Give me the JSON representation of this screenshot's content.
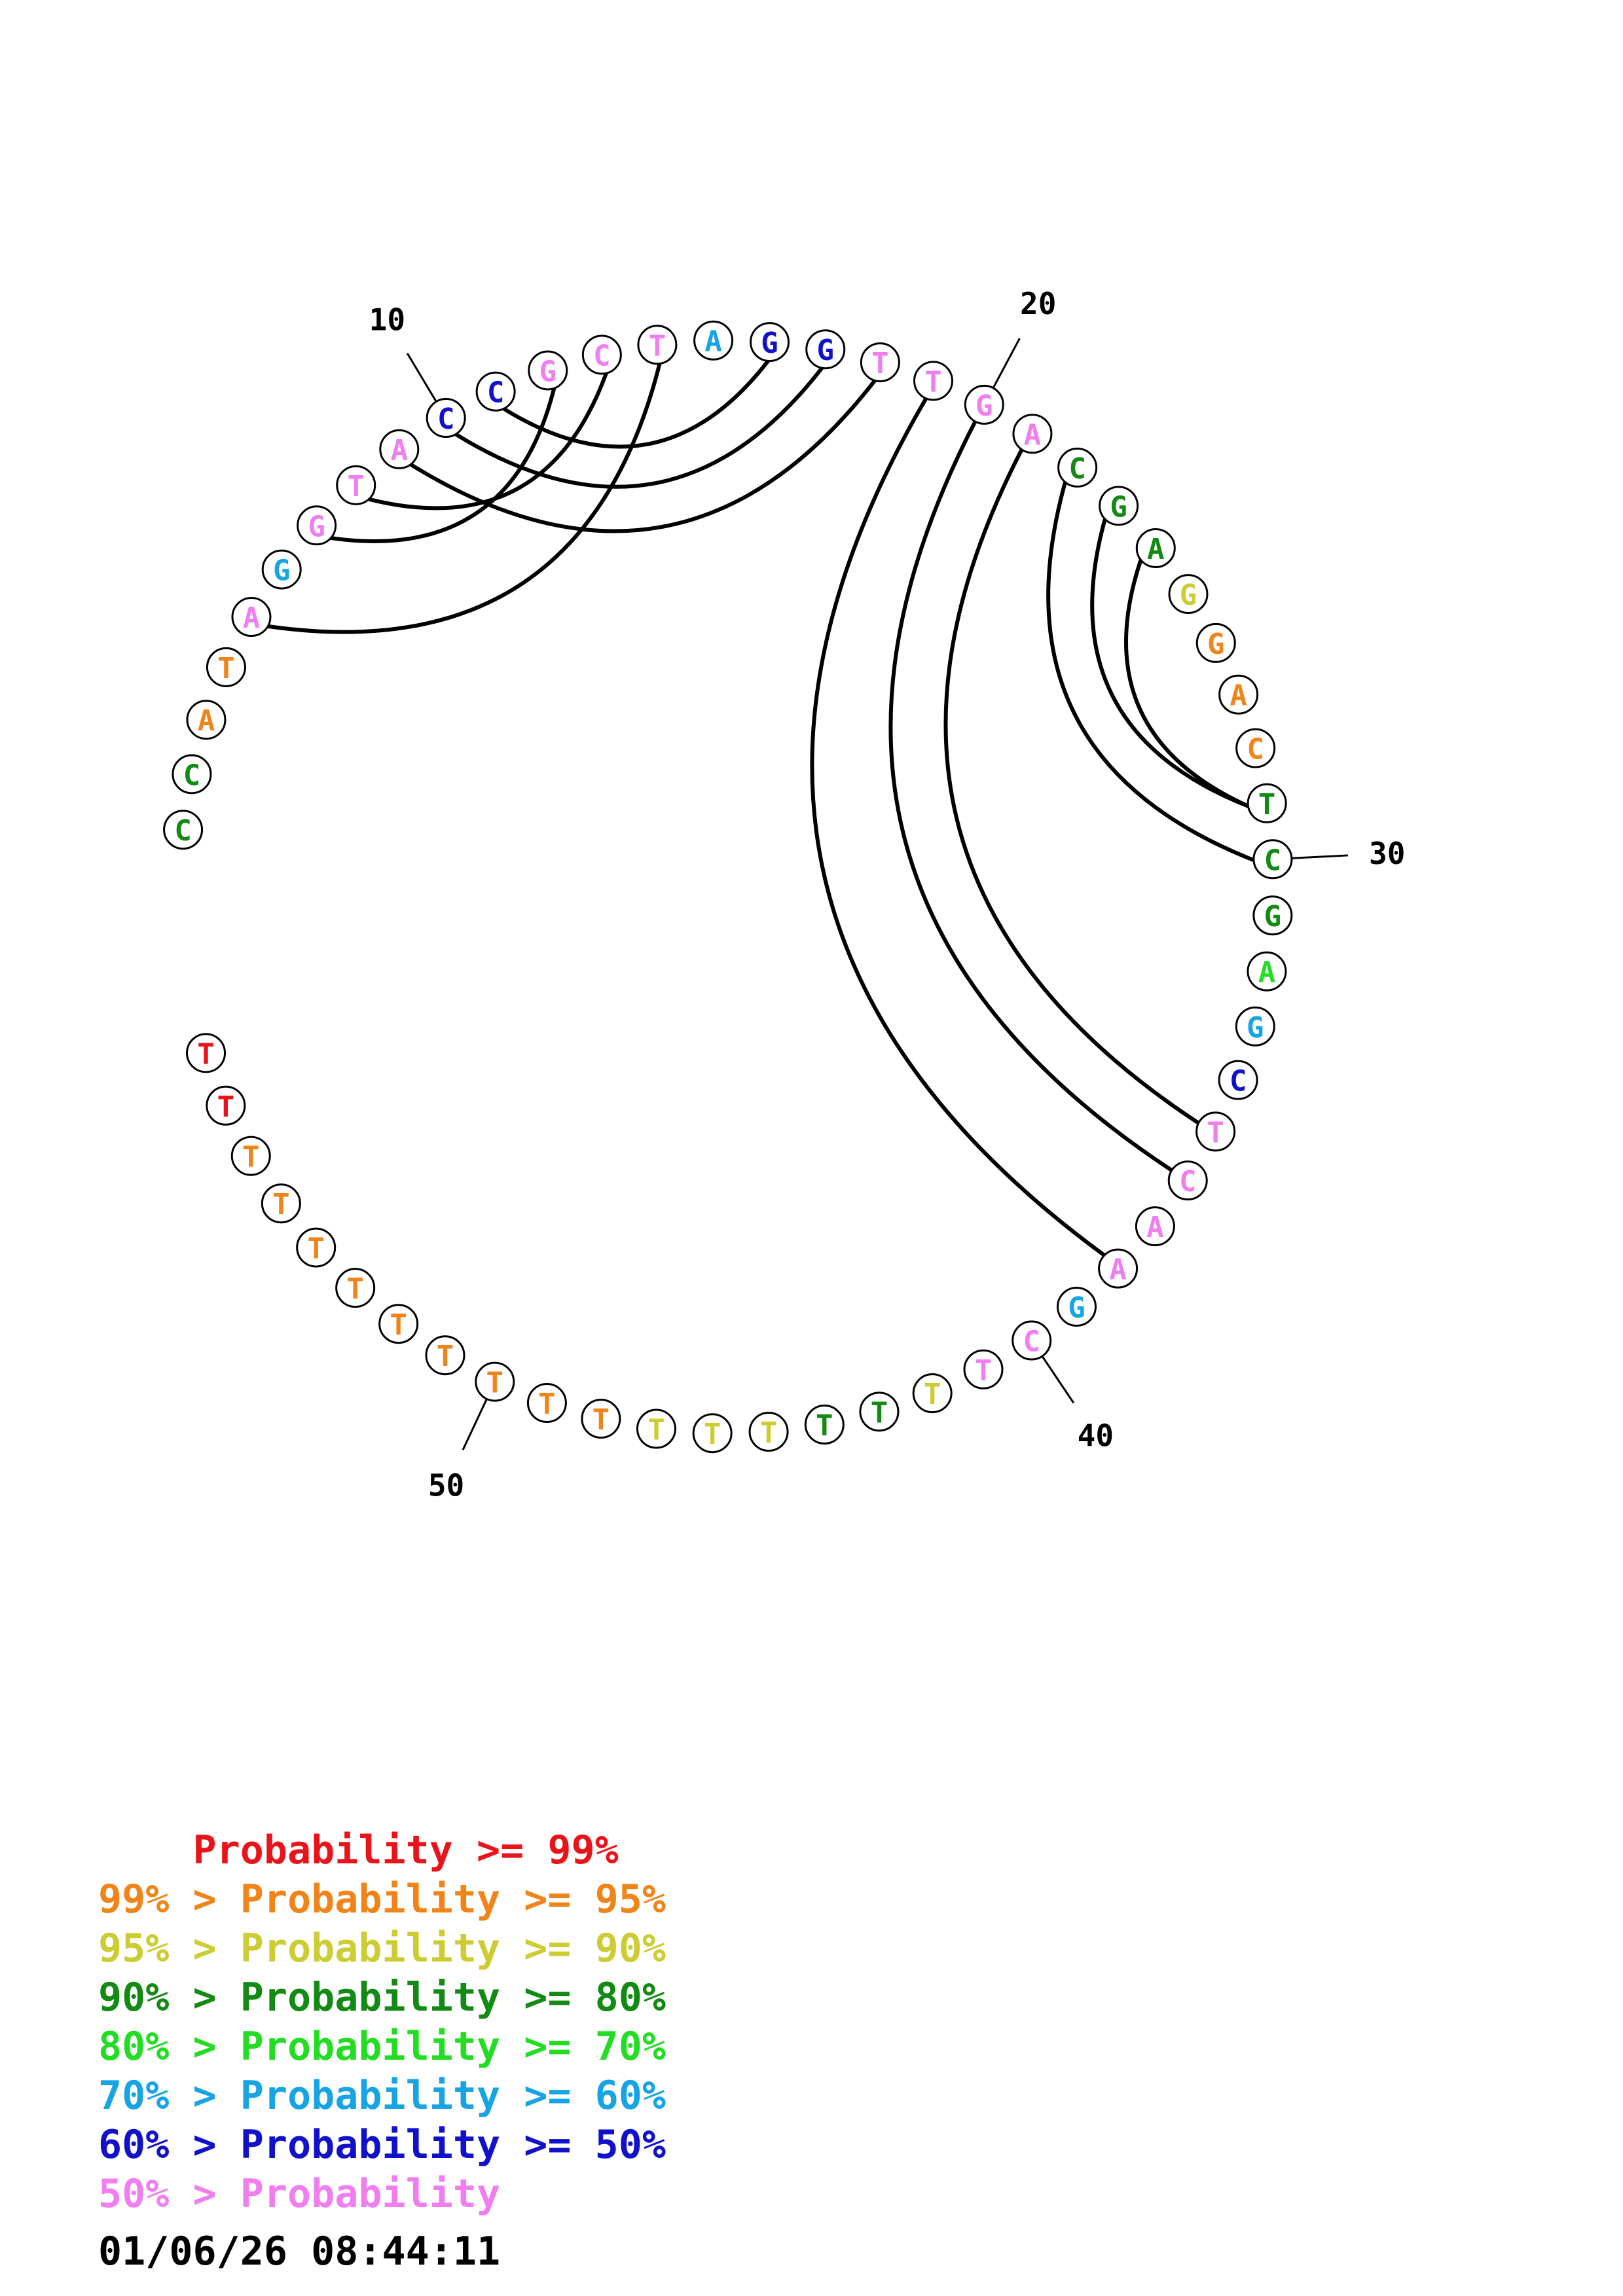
{
  "colors": {
    "p99": "#e8141a",
    "p95": "#f08418",
    "p90": "#cccc33",
    "p80": "#138a13",
    "p70": "#22dd22",
    "p60": "#16a4e4",
    "p50": "#1111cc",
    "plow": "#f07ef0"
  },
  "structure": {
    "nucleotides": [
      {
        "n": 1,
        "base": "C",
        "cls": "p80"
      },
      {
        "n": 2,
        "base": "C",
        "cls": "p80"
      },
      {
        "n": 3,
        "base": "A",
        "cls": "p95"
      },
      {
        "n": 4,
        "base": "T",
        "cls": "p95"
      },
      {
        "n": 5,
        "base": "A",
        "cls": "plow"
      },
      {
        "n": 6,
        "base": "G",
        "cls": "p60"
      },
      {
        "n": 7,
        "base": "G",
        "cls": "plow"
      },
      {
        "n": 8,
        "base": "T",
        "cls": "plow"
      },
      {
        "n": 9,
        "base": "A",
        "cls": "plow"
      },
      {
        "n": 10,
        "base": "C",
        "cls": "p50"
      },
      {
        "n": 11,
        "base": "C",
        "cls": "p50"
      },
      {
        "n": 12,
        "base": "G",
        "cls": "plow"
      },
      {
        "n": 13,
        "base": "C",
        "cls": "plow"
      },
      {
        "n": 14,
        "base": "T",
        "cls": "plow"
      },
      {
        "n": 15,
        "base": "A",
        "cls": "p60"
      },
      {
        "n": 16,
        "base": "G",
        "cls": "p50"
      },
      {
        "n": 17,
        "base": "G",
        "cls": "p50"
      },
      {
        "n": 18,
        "base": "T",
        "cls": "plow"
      },
      {
        "n": 19,
        "base": "T",
        "cls": "plow"
      },
      {
        "n": 20,
        "base": "G",
        "cls": "plow"
      },
      {
        "n": 21,
        "base": "A",
        "cls": "plow"
      },
      {
        "n": 22,
        "base": "C",
        "cls": "p80"
      },
      {
        "n": 23,
        "base": "G",
        "cls": "p80"
      },
      {
        "n": 24,
        "base": "A",
        "cls": "p80"
      },
      {
        "n": 25,
        "base": "G",
        "cls": "p90"
      },
      {
        "n": 26,
        "base": "G",
        "cls": "p95"
      },
      {
        "n": 27,
        "base": "A",
        "cls": "p95"
      },
      {
        "n": 28,
        "base": "C",
        "cls": "p95"
      },
      {
        "n": 29,
        "base": "T",
        "cls": "p80"
      },
      {
        "n": 30,
        "base": "C",
        "cls": "p80"
      },
      {
        "n": 31,
        "base": "G",
        "cls": "p80"
      },
      {
        "n": 32,
        "base": "A",
        "cls": "p70"
      },
      {
        "n": 33,
        "base": "G",
        "cls": "p60"
      },
      {
        "n": 34,
        "base": "C",
        "cls": "p50"
      },
      {
        "n": 35,
        "base": "T",
        "cls": "plow"
      },
      {
        "n": 36,
        "base": "C",
        "cls": "plow"
      },
      {
        "n": 37,
        "base": "A",
        "cls": "plow"
      },
      {
        "n": 38,
        "base": "A",
        "cls": "plow"
      },
      {
        "n": 39,
        "base": "G",
        "cls": "p60"
      },
      {
        "n": 40,
        "base": "C",
        "cls": "plow"
      },
      {
        "n": 41,
        "base": "T",
        "cls": "plow"
      },
      {
        "n": 42,
        "base": "T",
        "cls": "p90"
      },
      {
        "n": 43,
        "base": "T",
        "cls": "p80"
      },
      {
        "n": 44,
        "base": "T",
        "cls": "p80"
      },
      {
        "n": 45,
        "base": "T",
        "cls": "p90"
      },
      {
        "n": 46,
        "base": "T",
        "cls": "p90"
      },
      {
        "n": 47,
        "base": "T",
        "cls": "p90"
      },
      {
        "n": 48,
        "base": "T",
        "cls": "p95"
      },
      {
        "n": 49,
        "base": "T",
        "cls": "p95"
      },
      {
        "n": 50,
        "base": "T",
        "cls": "p95"
      },
      {
        "n": 51,
        "base": "T",
        "cls": "p95"
      },
      {
        "n": 52,
        "base": "T",
        "cls": "p95"
      },
      {
        "n": 53,
        "base": "T",
        "cls": "p95"
      },
      {
        "n": 54,
        "base": "T",
        "cls": "p95"
      },
      {
        "n": 55,
        "base": "T",
        "cls": "p95"
      },
      {
        "n": 56,
        "base": "T",
        "cls": "p95"
      },
      {
        "n": 57,
        "base": "T",
        "cls": "p99"
      },
      {
        "n": 58,
        "base": "T",
        "cls": "p99"
      }
    ],
    "pairs": [
      [
        5,
        14
      ],
      [
        7,
        12
      ],
      [
        8,
        13
      ],
      [
        9,
        18
      ],
      [
        10,
        17
      ],
      [
        11,
        16
      ],
      [
        19,
        38
      ],
      [
        20,
        36
      ],
      [
        21,
        35
      ],
      [
        22,
        30
      ],
      [
        23,
        29
      ],
      [
        24,
        29
      ]
    ],
    "index_labels": [
      {
        "n": 10,
        "text": "10"
      },
      {
        "n": 20,
        "text": "20"
      },
      {
        "n": 30,
        "text": "30"
      },
      {
        "n": 40,
        "text": "40"
      },
      {
        "n": 50,
        "text": "50"
      }
    ]
  },
  "legend": [
    {
      "prefix": "    ",
      "text": "Probability >= 99%",
      "cls": "p99"
    },
    {
      "prefix": "99% > ",
      "text": "Probability >= 95%",
      "cls": "p95"
    },
    {
      "prefix": "95% > ",
      "text": "Probability >= 90%",
      "cls": "p90"
    },
    {
      "prefix": "90% > ",
      "text": "Probability >= 80%",
      "cls": "p80"
    },
    {
      "prefix": "80% > ",
      "text": "Probability >= 70%",
      "cls": "p70"
    },
    {
      "prefix": "70% > ",
      "text": "Probability >= 60%",
      "cls": "p60"
    },
    {
      "prefix": "60% > ",
      "text": "Probability >= 50%",
      "cls": "p50"
    },
    {
      "prefix": "50% > ",
      "text": "Probability",
      "cls": "plow"
    }
  ],
  "timestamp": "01/06/26 08:44:11"
}
